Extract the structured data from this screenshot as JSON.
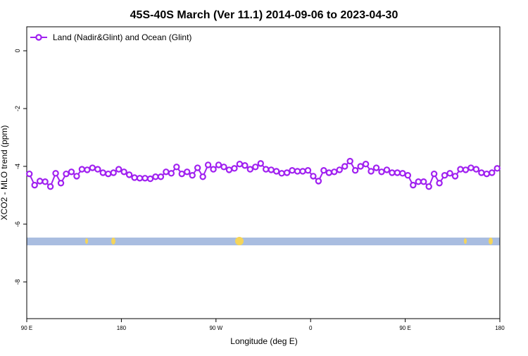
{
  "chart_data": {
    "type": "line",
    "title": "45S-40S March (Ver 11.1)   2014-09-06 to 2023-04-30",
    "x_label": "Longitude (deg E)",
    "y_label": "XCO2 - MLO trend (ppm)",
    "x": [
      92.5,
      97.5,
      102.5,
      107.5,
      112.5,
      117.5,
      122.5,
      127.5,
      132.5,
      137.5,
      142.5,
      147.5,
      152.5,
      157.5,
      162.5,
      167.5,
      172.5,
      177.5,
      182.5,
      187.5,
      192.5,
      197.5,
      202.5,
      207.5,
      212.5,
      217.5,
      222.5,
      227.5,
      232.5,
      237.5,
      242.5,
      247.5,
      252.5,
      257.5,
      262.5,
      267.5,
      272.5,
      277.5,
      282.5,
      287.5,
      292.5,
      297.5,
      302.5,
      307.5,
      312.5,
      317.5,
      322.5,
      327.5,
      332.5,
      337.5,
      342.5,
      347.5,
      352.5,
      357.5,
      362.5,
      367.5,
      372.5,
      377.5,
      382.5,
      387.5,
      392.5,
      397.5,
      402.5,
      407.5,
      412.5,
      417.5,
      422.5,
      427.5,
      432.5,
      437.5,
      442.5,
      447.5,
      452.5,
      457.5,
      462.5,
      467.5,
      472.5,
      477.5,
      482.5,
      487.5,
      492.5,
      497.5,
      502.5,
      507.5,
      512.5,
      517.5,
      522.5,
      527.5,
      532.5,
      537.5
    ],
    "series": [
      {
        "name": "Land (Nadir&Glint) and Ocean (Glint)",
        "color": "#a020f0",
        "values": [
          -4.26,
          -4.65,
          -4.51,
          -4.53,
          -4.7,
          -4.24,
          -4.58,
          -4.26,
          -4.19,
          -4.34,
          -4.1,
          -4.12,
          -4.05,
          -4.1,
          -4.22,
          -4.26,
          -4.22,
          -4.1,
          -4.19,
          -4.29,
          -4.39,
          -4.41,
          -4.41,
          -4.43,
          -4.36,
          -4.36,
          -4.19,
          -4.24,
          -4.02,
          -4.26,
          -4.19,
          -4.31,
          -4.05,
          -4.36,
          -3.95,
          -4.1,
          -3.95,
          -4.02,
          -4.12,
          -4.07,
          -3.92,
          -3.97,
          -4.1,
          -4.02,
          -3.9,
          -4.1,
          -4.12,
          -4.17,
          -4.24,
          -4.22,
          -4.14,
          -4.17,
          -4.17,
          -4.14,
          -4.34,
          -4.51,
          -4.14,
          -4.22,
          -4.19,
          -4.12,
          -4.0,
          -3.82,
          -4.14,
          -4.0,
          -3.92,
          -4.17,
          -4.05,
          -4.19,
          -4.12,
          -4.22,
          -4.22,
          -4.24,
          -4.31,
          -4.65,
          -4.53,
          -4.53,
          -4.7,
          -4.26,
          -4.58,
          -4.31,
          -4.24,
          -4.34,
          -4.1,
          -4.12,
          -4.05,
          -4.1,
          -4.22,
          -4.26,
          -4.22,
          -4.07
        ]
      }
    ],
    "xlim": [
      90,
      540
    ],
    "xticks": [
      {
        "value": 90,
        "label": "90 E"
      },
      {
        "value": 180,
        "label": "180"
      },
      {
        "value": 270,
        "label": "90 W"
      },
      {
        "value": 360,
        "label": "0"
      },
      {
        "value": 450,
        "label": "90 E"
      },
      {
        "value": 540,
        "label": "180"
      }
    ],
    "ylim": [
      -9.27,
      0.83
    ],
    "yticks": [
      0,
      -2,
      -4,
      -6,
      -8
    ],
    "legend": "top-left"
  }
}
